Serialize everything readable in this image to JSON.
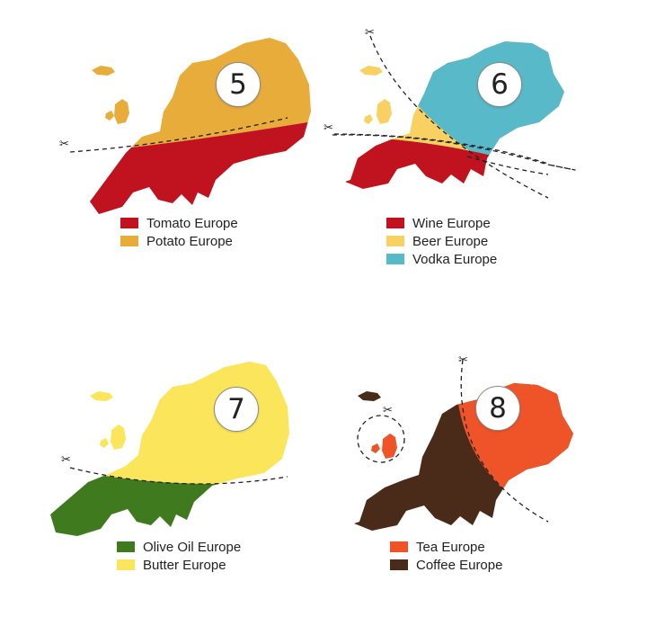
{
  "colors": {
    "tomato": "#c1121f",
    "potato": "#e8ac3a",
    "wine": "#c1121f",
    "beer": "#f9d162",
    "vodka": "#58b9c8",
    "olive_oil": "#3f7a1e",
    "butter": "#fbe55a",
    "tea": "#ef5428",
    "coffee": "#4a2b1a"
  },
  "panels": [
    {
      "number": "5",
      "legend": [
        {
          "label": "Tomato Europe",
          "color": "#c1121f"
        },
        {
          "label": "Potato Europe",
          "color": "#e8ac3a"
        }
      ]
    },
    {
      "number": "6",
      "legend": [
        {
          "label": "Wine Europe",
          "color": "#c1121f"
        },
        {
          "label": "Beer Europe",
          "color": "#f9d162"
        },
        {
          "label": "Vodka Europe",
          "color": "#58b9c8"
        }
      ]
    },
    {
      "number": "7",
      "legend": [
        {
          "label": "Olive Oil Europe",
          "color": "#3f7a1e"
        },
        {
          "label": "Butter Europe",
          "color": "#fbe55a"
        }
      ]
    },
    {
      "number": "8",
      "legend": [
        {
          "label": "Tea Europe",
          "color": "#ef5428"
        },
        {
          "label": "Coffee Europe",
          "color": "#4a2b1a"
        }
      ]
    }
  ],
  "icons": {
    "cut_marker": "scissors-icon",
    "scissors_glyph": "✂"
  }
}
